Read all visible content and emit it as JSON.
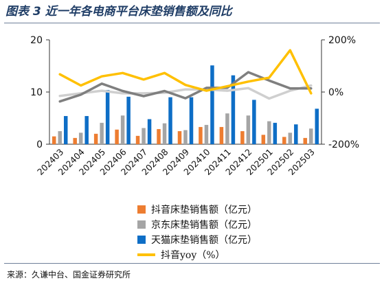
{
  "title": "图表 3 近一年各电商平台床垫销售额及同比",
  "source": "来源：久谦中台、国金证券研究所",
  "chart_data": {
    "type": "bar",
    "categories": [
      "202403",
      "202404",
      "202405",
      "202406",
      "202407",
      "202408",
      "202409",
      "202410",
      "202411",
      "202412",
      "202501",
      "202502",
      "202503"
    ],
    "series": [
      {
        "name": "抖音床垫销售额（亿元）",
        "type": "bar",
        "axis": "left",
        "color": "#ed7d31",
        "values": [
          1.5,
          1.2,
          2.0,
          2.8,
          1.6,
          2.9,
          2.5,
          3.3,
          3.3,
          2.5,
          1.8,
          1.4,
          1.2
        ]
      },
      {
        "name": "京东床垫销售额（亿元）",
        "type": "bar",
        "axis": "left",
        "color": "#a5a5a5",
        "values": [
          2.5,
          2.2,
          4.1,
          5.5,
          3.1,
          4.0,
          2.7,
          3.7,
          5.9,
          5.5,
          4.4,
          2.2,
          3.0
        ]
      },
      {
        "name": "天猫床垫销售额（亿元）",
        "type": "bar",
        "axis": "left",
        "color": "#0e6ec6",
        "values": [
          5.4,
          5.4,
          10.4,
          9.1,
          4.8,
          9.0,
          9.0,
          15.1,
          13.2,
          8.5,
          4.1,
          3.8,
          6.8
        ]
      },
      {
        "name": "抖音yoy（%）",
        "type": "line",
        "axis": "right",
        "color": "#ffc000",
        "values": [
          68,
          25,
          60,
          73,
          48,
          73,
          27,
          5,
          22,
          40,
          55,
          160,
          -5
        ]
      },
      {
        "name": "",
        "type": "line",
        "axis": "left",
        "color": "#7f7f7f",
        "values": [
          8.2,
          9.5,
          11.6,
          10.2,
          9.2,
          10.2,
          8.8,
          10.8,
          10.8,
          13.8,
          12.2,
          10.7,
          10.7
        ]
      },
      {
        "name": "",
        "type": "line",
        "axis": "right",
        "color": "#cfcfcf",
        "values": [
          -15,
          -5,
          5,
          -5,
          -5,
          -3,
          10,
          10,
          5,
          15,
          -25,
          5,
          25
        ]
      }
    ],
    "y_left": {
      "range": [
        0,
        20
      ],
      "ticks": [
        "0",
        "10",
        "20"
      ]
    },
    "y_right": {
      "range": [
        -200,
        200
      ],
      "ticks": [
        "-200%",
        "0%",
        "200%"
      ]
    },
    "grid": false,
    "legend_position": "bottom"
  }
}
